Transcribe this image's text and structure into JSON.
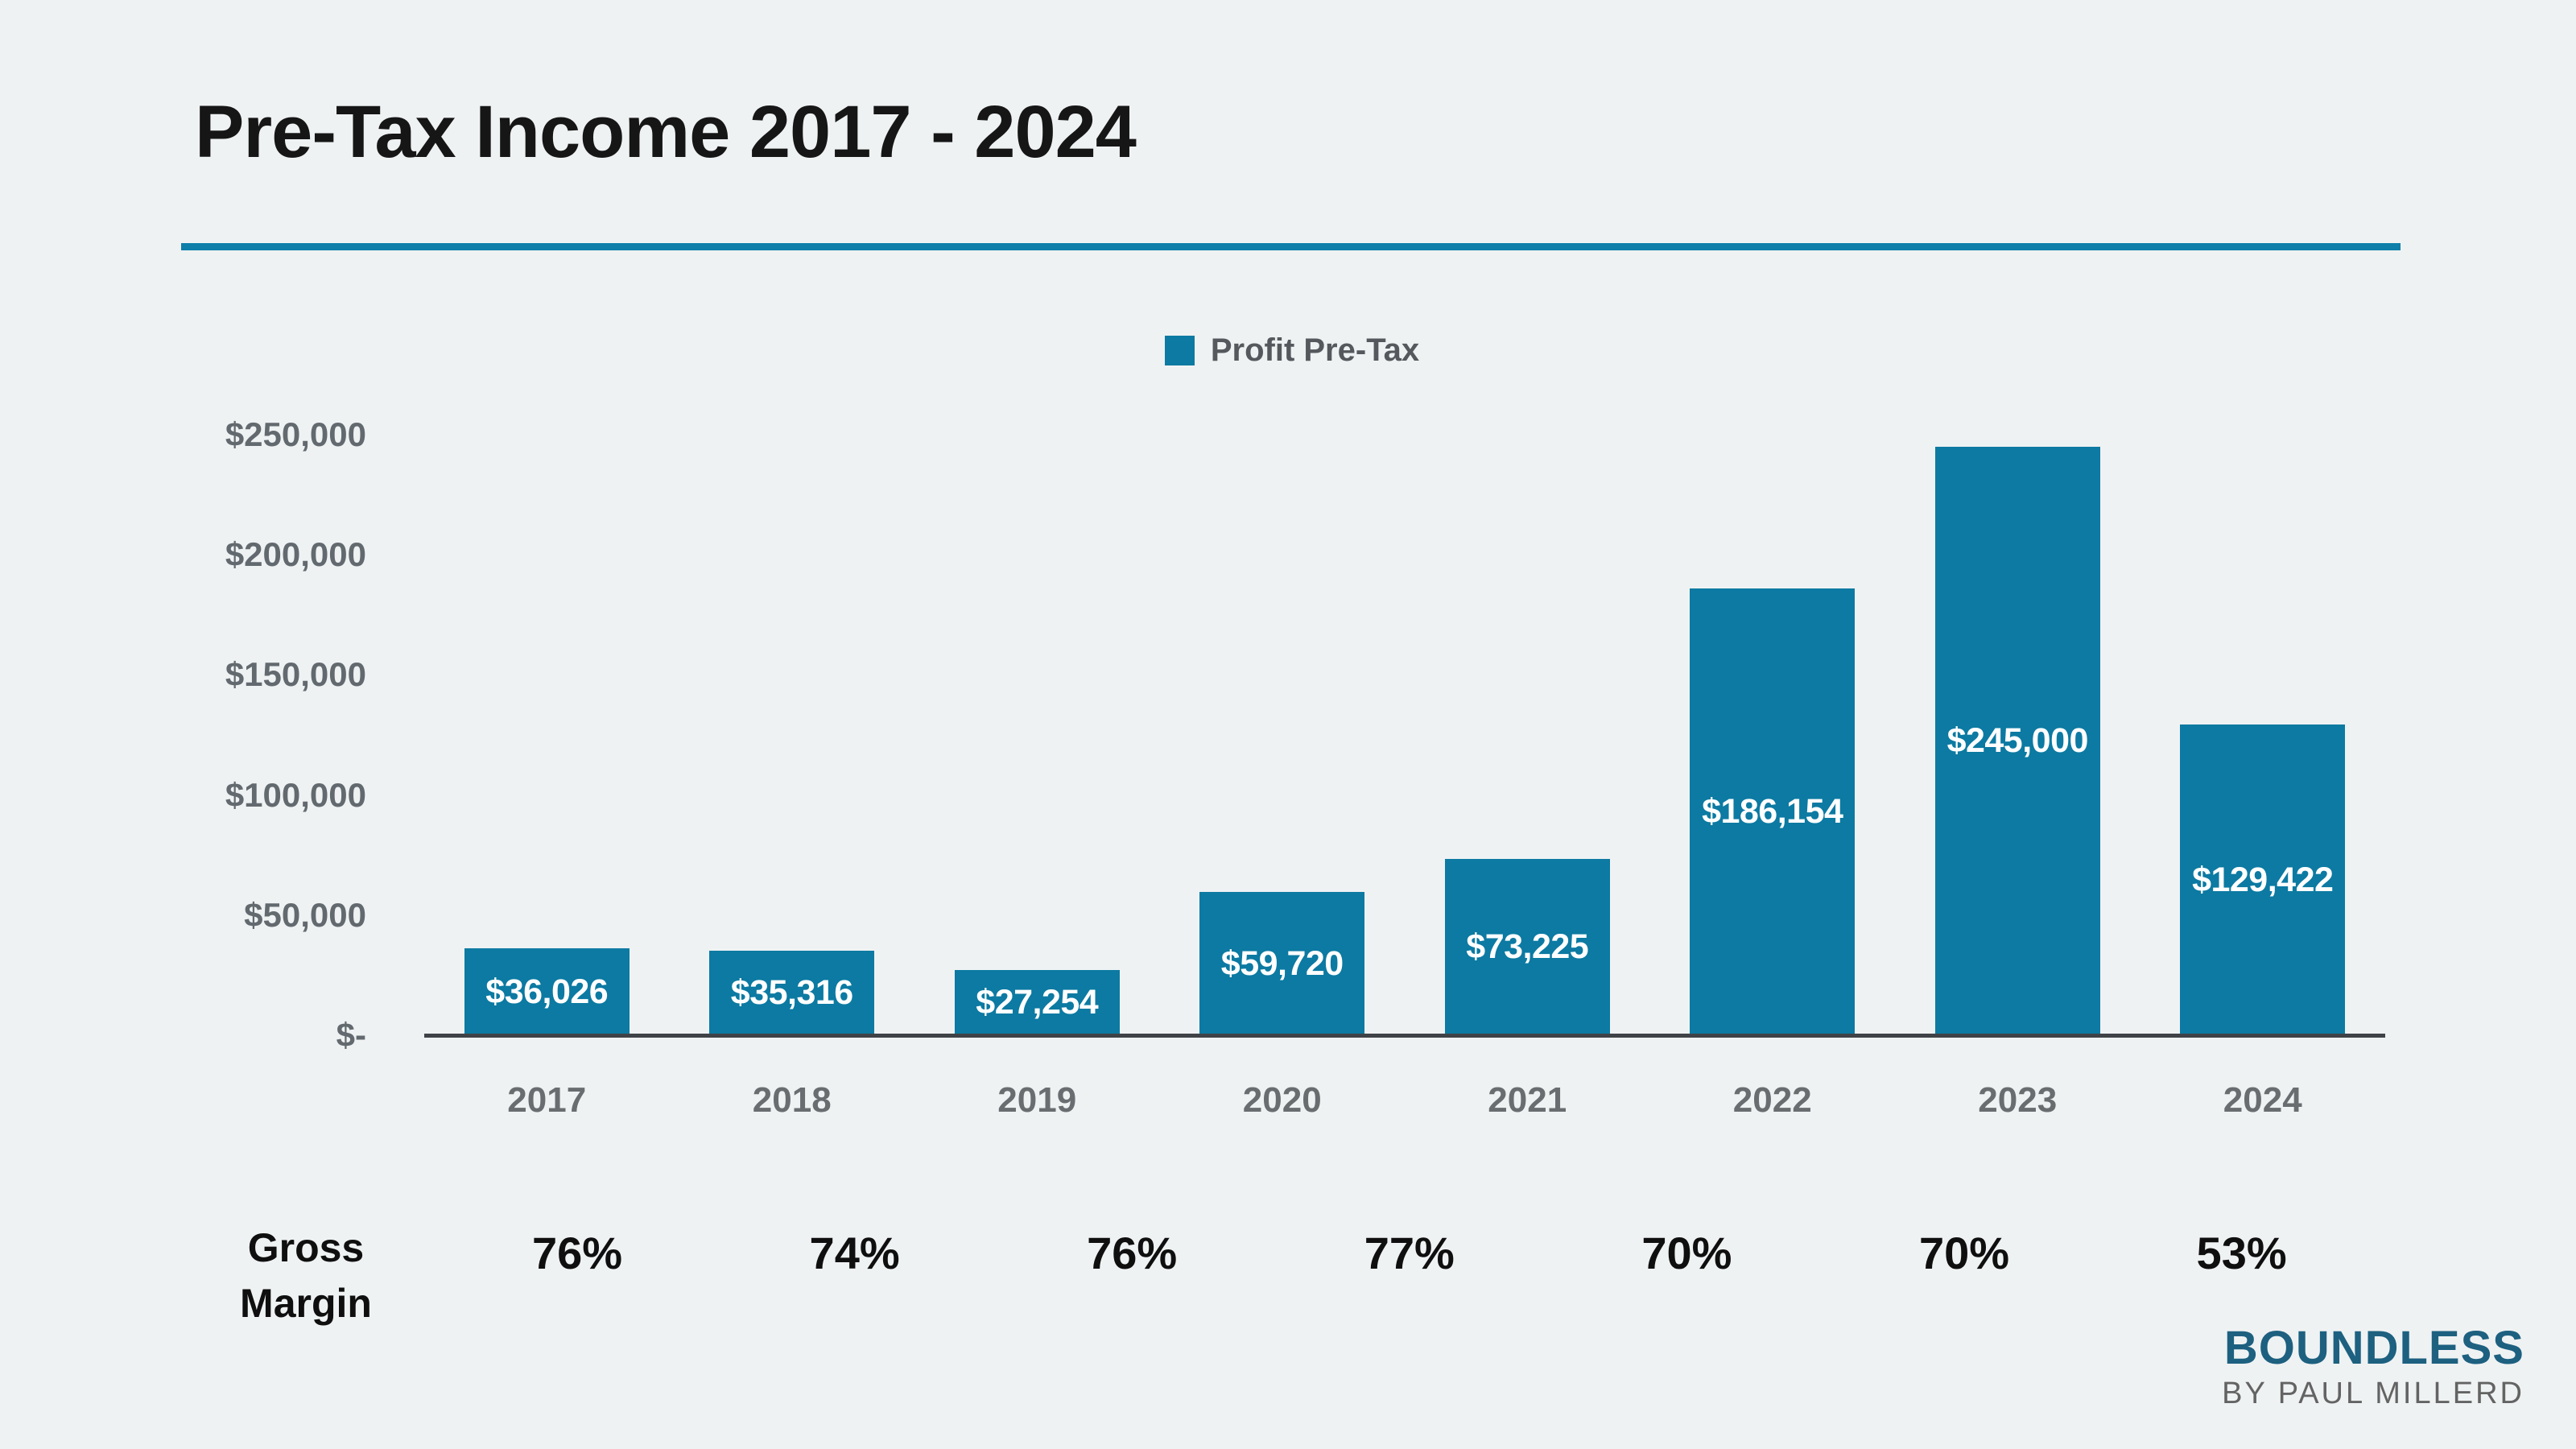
{
  "title": "Pre-Tax Income 2017 - 2024",
  "legend": {
    "label": "Profit Pre-Tax"
  },
  "chart_data": {
    "type": "bar",
    "title": "Pre-Tax Income 2017 - 2024",
    "categories": [
      "2017",
      "2018",
      "2019",
      "2020",
      "2021",
      "2022",
      "2023",
      "2024"
    ],
    "series": [
      {
        "name": "Profit Pre-Tax",
        "values": [
          36026,
          35316,
          27254,
          59720,
          73225,
          186154,
          245000,
          129422
        ]
      }
    ],
    "value_labels": [
      "$36,026",
      "$35,316",
      "$27,254",
      "$59,720",
      "$73,225",
      "$186,154",
      "$245,000",
      "$129,422"
    ],
    "y_ticks": [
      {
        "label": "$250,000",
        "value": 250000
      },
      {
        "label": "$200,000",
        "value": 200000
      },
      {
        "label": "$150,000",
        "value": 150000
      },
      {
        "label": "$100,000",
        "value": 100000
      },
      {
        "label": "$50,000",
        "value": 50000
      },
      {
        "label": "$-",
        "value": 0
      }
    ],
    "ylim": [
      0,
      250000
    ],
    "xlabel": "",
    "ylabel": "",
    "grid": false,
    "legend_position": "top-center",
    "annotations_row": {
      "label": "Gross Margin",
      "values": [
        "76%",
        "74%",
        "76%",
        "77%",
        "70%",
        "70%",
        "53%"
      ]
    }
  },
  "footer": {
    "brand": "BOUNDLESS",
    "byline": "BY PAUL MILLERD"
  },
  "colors": {
    "background": "#eff2f3",
    "bar": "#0c7aa2",
    "title_rule": "#0d7fa9",
    "axis_line": "#3f4347",
    "bar_label_text": "#ffffff",
    "tick_text": "#636a6f",
    "brand": "#1d6080"
  }
}
